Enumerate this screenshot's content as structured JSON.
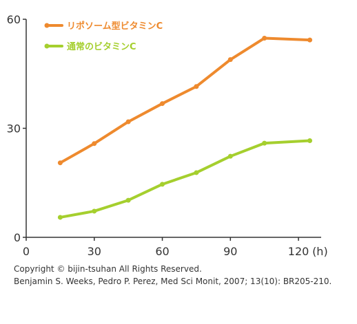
{
  "chart_data": {
    "type": "line",
    "x_tick_labels": [
      "0",
      "30",
      "60",
      "90",
      "120"
    ],
    "x_unit_label": "(h)",
    "y_tick_labels": [
      "0",
      "30",
      "60"
    ],
    "xlim": [
      0,
      130
    ],
    "ylim": [
      0,
      60
    ],
    "grid": false,
    "legend_position": "top-left",
    "series": [
      {
        "name": "リポソーム型ビタミンC",
        "color": "#ee8a2e",
        "points": [
          [
            15,
            20.5
          ],
          [
            30,
            25.8
          ],
          [
            45,
            31.8
          ],
          [
            60,
            36.8
          ],
          [
            75,
            41.5
          ],
          [
            90,
            48.9
          ],
          [
            105,
            54.8
          ],
          [
            125,
            54.3
          ]
        ]
      },
      {
        "name": "通常のビタミンC",
        "color": "#a5cf2e",
        "points": [
          [
            15,
            5.5
          ],
          [
            30,
            7.2
          ],
          [
            45,
            10.2
          ],
          [
            60,
            14.6
          ],
          [
            75,
            17.8
          ],
          [
            90,
            22.3
          ],
          [
            105,
            25.9
          ],
          [
            125,
            26.6
          ]
        ]
      }
    ]
  },
  "footer": {
    "copyright": "Copyright © bijin-tsuhan All Rights Reserved.",
    "citation": "Benjamin S. Weeks, Pedro P. Perez, Med Sci Monit, 2007; 13(10): BR205-210."
  }
}
